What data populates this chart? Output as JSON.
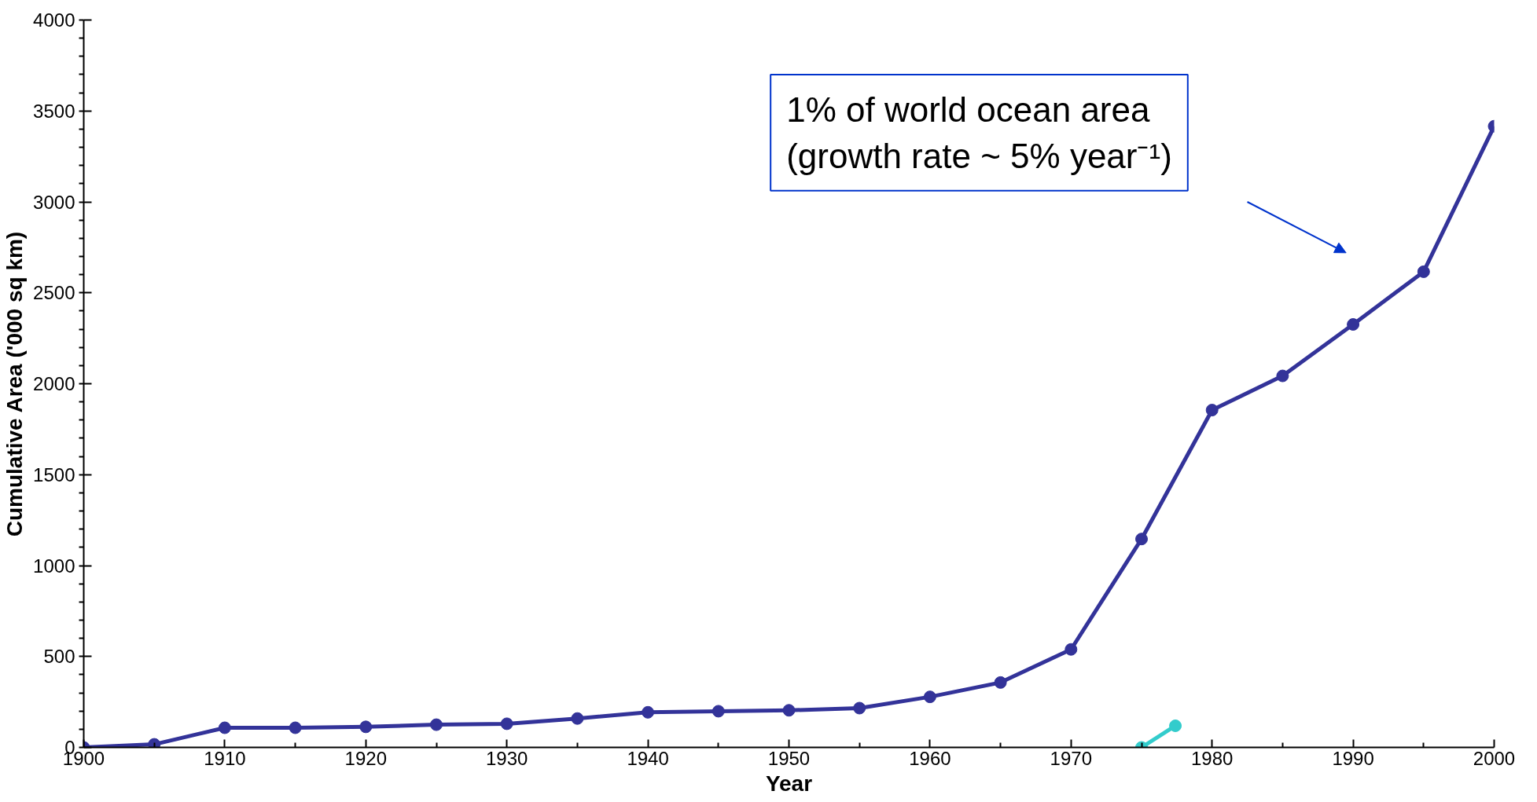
{
  "chart_data": {
    "type": "line",
    "xlabel": "Year",
    "ylabel": "Cumulative Area ('000 sq km)",
    "x": [
      1900,
      1905,
      1910,
      1915,
      1920,
      1925,
      1930,
      1935,
      1940,
      1945,
      1950,
      1955,
      1960,
      1965,
      1970,
      1975,
      1980,
      1985,
      1990,
      1995,
      2000
    ],
    "series": [
      {
        "color": "#333399",
        "values": [
          0,
          17,
          108,
          108,
          113,
          125,
          130,
          159,
          193,
          199,
          204,
          216,
          278,
          357,
          539,
          1146,
          1855,
          2043,
          2326,
          2616,
          3416
        ],
        "marker": "circle"
      },
      {
        "color": "#33cccc",
        "x": [
          1975,
          1977.4
        ],
        "values": [
          0,
          119
        ],
        "marker": "circle"
      }
    ],
    "xlim": [
      1900,
      2000
    ],
    "xticks": [
      1900,
      1910,
      1920,
      1930,
      1940,
      1950,
      1960,
      1970,
      1980,
      1990,
      2000
    ],
    "ylim": [
      0,
      4000
    ],
    "yticks": [
      0,
      500,
      1000,
      1500,
      2000,
      2500,
      3000,
      3500,
      4000
    ],
    "grid": false,
    "line_style": "solid",
    "annotations": [
      "1% of world ocean area\n(growth rate ~ 5% year⁻¹)"
    ]
  }
}
